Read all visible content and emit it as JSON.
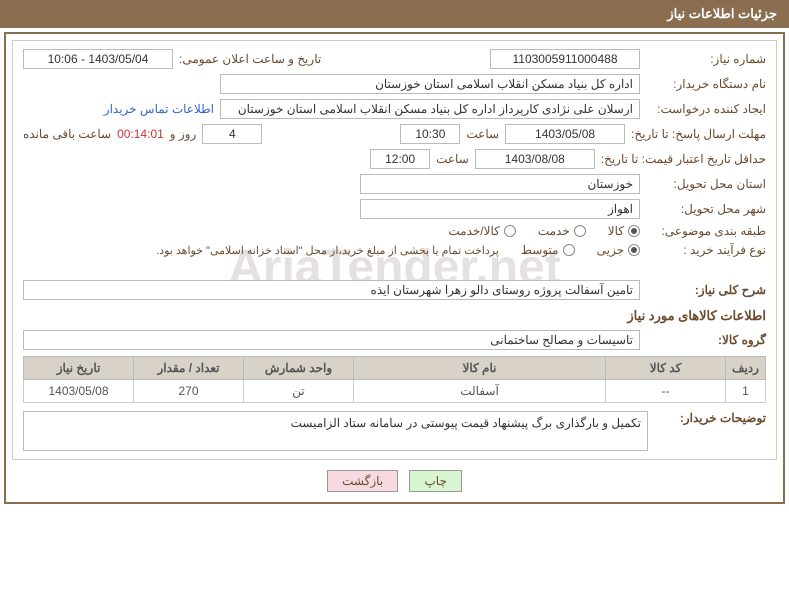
{
  "header": {
    "title": "جزئیات اطلاعات نیاز"
  },
  "main": {
    "need_no_label": "شماره نیاز:",
    "need_no": "1103005911000488",
    "announce_label": "تاریخ و ساعت اعلان عمومی:",
    "announce_value": "1403/05/04 - 10:06",
    "buyer_org_label": "نام دستگاه خریدار:",
    "buyer_org": "اداره کل بنیاد مسکن انقلاب اسلامی استان خوزستان",
    "requester_label": "ایجاد کننده درخواست:",
    "requester": "ارسلان علی نژادی کارپرداز اداره کل بنیاد مسکن انقلاب اسلامی استان خوزستان",
    "contact_link": "اطلاعات تماس خریدار",
    "deadline_label": "مهلت ارسال پاسخ: تا تاریخ:",
    "deadline_date": "1403/05/08",
    "hour_label": "ساعت",
    "deadline_time": "10:30",
    "days_label_after": "روز و",
    "days_value": "4",
    "remaining_label": "ساعت باقی مانده",
    "countdown": "00:14:01",
    "validity_label": "حداقل تاریخ اعتبار قیمت: تا تاریخ:",
    "validity_date": "1403/08/08",
    "validity_time": "12:00",
    "delivery_prov_label": "استان محل تحویل:",
    "delivery_prov": "خوزستان",
    "delivery_city_label": "شهر محل تحویل:",
    "delivery_city": "اهواز",
    "category_label": "طبقه بندی موضوعی:",
    "cat_goods": "کالا",
    "cat_service": "خدمت",
    "cat_goodservice": "کالا/خدمت",
    "buytype_label": "نوع فرآیند خرید :",
    "bt_partial": "جزیی",
    "bt_medium": "متوسط",
    "payment_note": "پرداخت تمام یا بخشی از مبلغ خرید،از محل \"اسناد خزانه اسلامی\" خواهد بود.",
    "overall_label": "شرح کلی نیاز:",
    "overall_value": "تامین آسفالت پروژه روستای دالو زهرا  شهرستان ایذه",
    "items_title": "اطلاعات کالاهای مورد نیاز",
    "group_label": "گروه کالا:",
    "group_value": "تاسیسات و مصالح ساختمانی",
    "table": {
      "headers": [
        "ردیف",
        "کد کالا",
        "نام کالا",
        "واحد شمارش",
        "تعداد / مقدار",
        "تاریخ نیاز"
      ],
      "rows": [
        [
          "1",
          "--",
          "آسفالت",
          "تن",
          "270",
          "1403/05/08"
        ]
      ],
      "col_widths": [
        "40px",
        "120px",
        "auto",
        "110px",
        "110px",
        "110px"
      ]
    },
    "buyer_notes_label": "توضیحات خریدار:",
    "buyer_notes": "تکمیل و بارگذاری برگ پیشنهاد قیمت پیوستی در سامانه ستاد الزامیست"
  },
  "footer": {
    "print": "چاپ",
    "back": "بازگشت"
  },
  "watermark": "AriaTender.net",
  "colors": {
    "header_bg": "#8b6d4f",
    "th_bg": "#d9d2c9",
    "link": "#3366cc",
    "countdown": "#cc3333"
  }
}
